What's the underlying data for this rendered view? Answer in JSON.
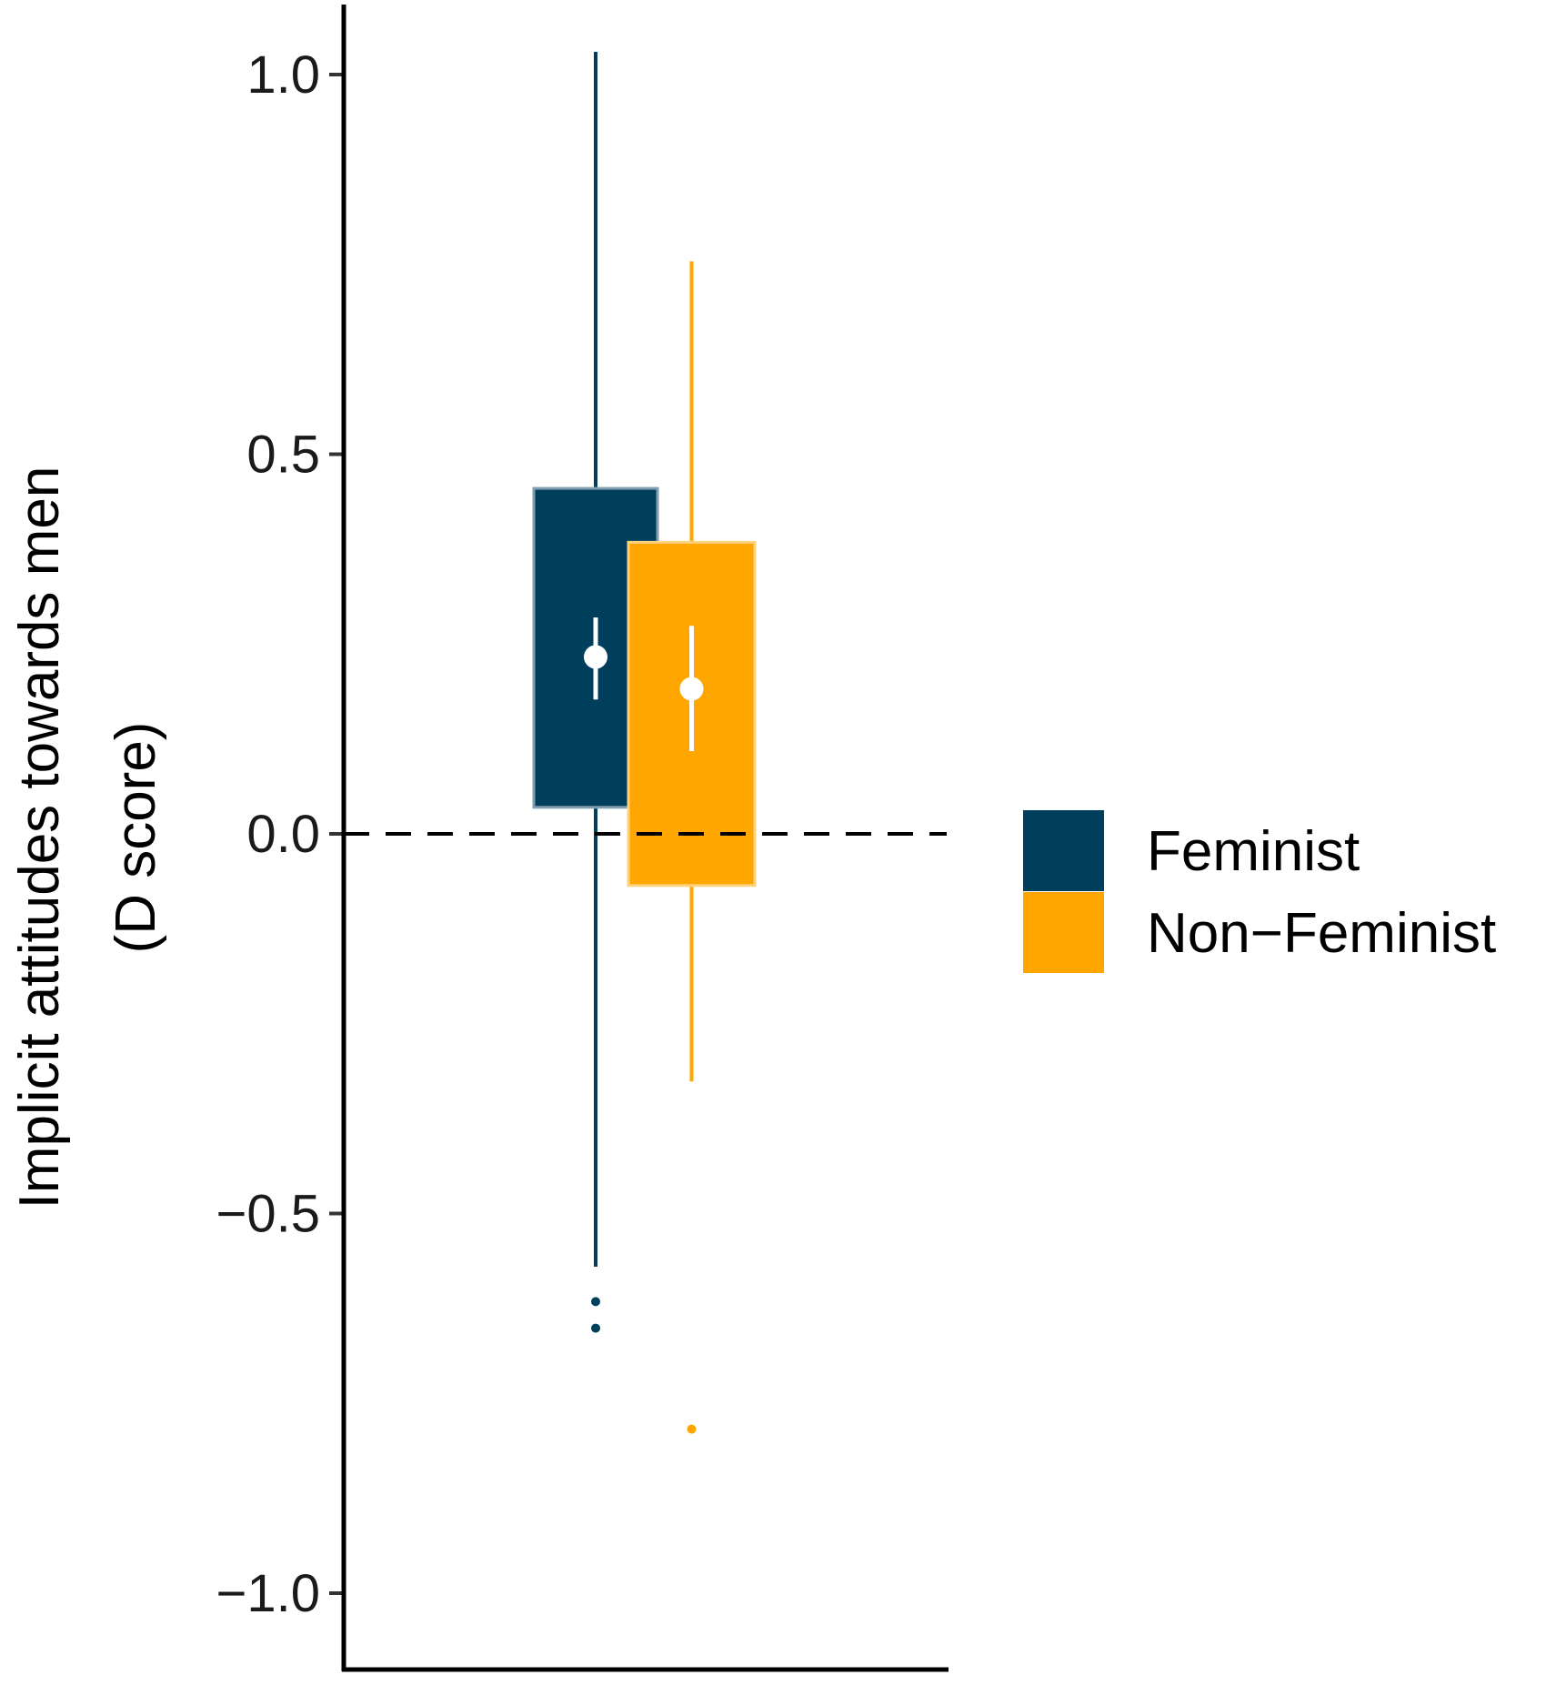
{
  "chart_data": {
    "type": "boxplot",
    "title": "",
    "xlabel": "",
    "ylabel_lines": [
      "Implicit attitudes towards men",
      "(D score)"
    ],
    "ylim": [
      -1.1,
      1.1
    ],
    "yticks": [
      1.0,
      0.5,
      0.0,
      -0.5,
      -1.0
    ],
    "ytick_labels": [
      "1.0",
      "0.5",
      "0.0",
      "−0.5",
      "−1.0"
    ],
    "reference_line": {
      "y": 0.0,
      "style": "dashed"
    },
    "grid": false,
    "legend_position": "right",
    "series": [
      {
        "name": "Feminist",
        "color": "#003f5c",
        "whisker_low": -0.57,
        "q1": 0.035,
        "q3": 0.455,
        "whisker_high": 1.03,
        "mean": 0.233,
        "ci": [
          0.177,
          0.285
        ],
        "outliers": [
          -0.616,
          -0.651
        ]
      },
      {
        "name": "Non−Feminist",
        "color": "#ffa600",
        "whisker_low": -0.326,
        "q1": -0.068,
        "q3": 0.384,
        "whisker_high": 0.754,
        "mean": 0.191,
        "ci": [
          0.109,
          0.274
        ],
        "outliers": [
          -0.784
        ]
      }
    ]
  }
}
